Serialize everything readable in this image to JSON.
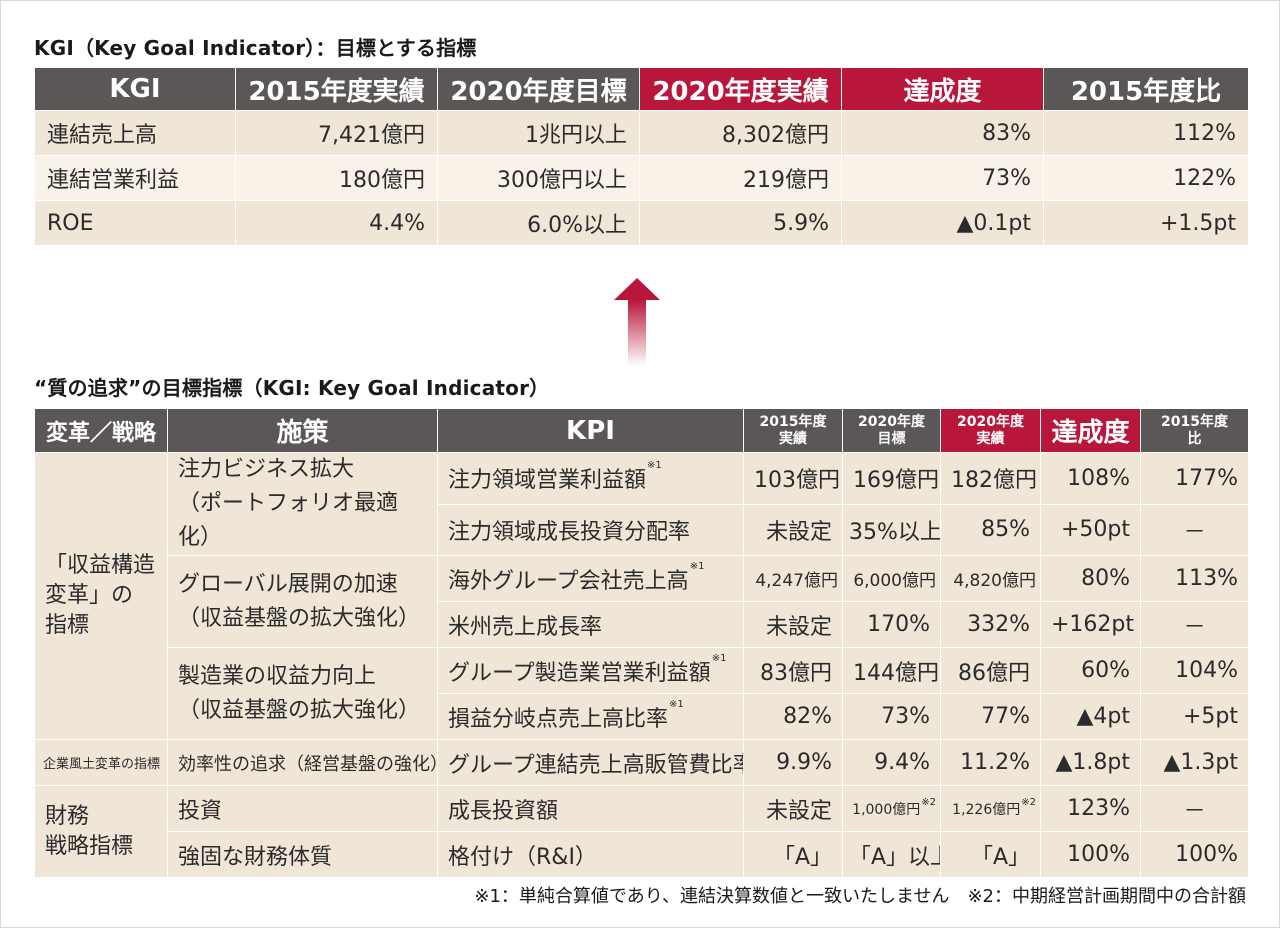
{
  "kgi": {
    "title": "KGI（Key Goal Indicator）：目標とする指標",
    "headers": [
      "KGI",
      "2015年度実績",
      "2020年度目標",
      "2020年度実績",
      "達成度",
      "2015年度比"
    ],
    "rows": [
      [
        "連結売上高",
        "7,421億円",
        "1兆円以上",
        "8,302億円",
        "83%",
        "112%"
      ],
      [
        "連結営業利益",
        "180億円",
        "300億円以上",
        "219億円",
        "73%",
        "122%"
      ],
      [
        "ROE",
        "4.4%",
        "6.0%以上",
        "5.9%",
        "▲0.1pt",
        "+1.5pt"
      ]
    ]
  },
  "quality": {
    "title": "“質の追求”の目標指標（KGI: Key Goal Indicator）",
    "headers": {
      "category": "変革／戦略",
      "measure": "施策",
      "kpi": "KPI",
      "actual2015": "2015年度\n実績",
      "target2020": "2020年度\n目標",
      "actual2020": "2020年度\n実績",
      "achievement": "達成度",
      "vs2015": "2015年度\n比"
    },
    "groups": {
      "profit": "「収益構造\n変革」の\n指標",
      "culture": "企業風土変革の指標",
      "finance": "財務\n戦略指標"
    },
    "measures": {
      "m1": "注力ビジネス拡大\n（ポートフォリオ最適化）",
      "m2": "グローバル展開の加速\n（収益基盤の拡大強化）",
      "m3": "製造業の収益力向上\n（収益基盤の拡大強化）",
      "m4": "効率性の追求（経営基盤の強化）",
      "m5": "投資",
      "m6": "強固な財務体質"
    },
    "rows": [
      {
        "kpi": "注力領域営業利益額",
        "note": "※1",
        "a": "103億円",
        "b": "169億円",
        "c": "182億円",
        "d": "108%",
        "e": "177%"
      },
      {
        "kpi": "注力領域成長投資分配率",
        "note": "",
        "a": "未設定",
        "b": "35%以上",
        "c": "85%",
        "d": "+50pt",
        "e": "－"
      },
      {
        "kpi": "海外グループ会社売上高",
        "note": "※1",
        "a": "4,247億円",
        "b": "6,000億円",
        "c": "4,820億円",
        "d": "80%",
        "e": "113%"
      },
      {
        "kpi": "米州売上成長率",
        "note": "",
        "a": "未設定",
        "b": "170%",
        "c": "332%",
        "d": "+162pt",
        "e": "－"
      },
      {
        "kpi": "グループ製造業営業利益額",
        "note": "※1",
        "a": "83億円",
        "b": "144億円",
        "c": "86億円",
        "d": "60%",
        "e": "104%"
      },
      {
        "kpi": "損益分岐点売上高比率",
        "note": "※1",
        "a": "82%",
        "b": "73%",
        "c": "77%",
        "d": "▲4pt",
        "e": "+5pt"
      },
      {
        "kpi": "グループ連結売上高販管費比率",
        "note": "",
        "a": "9.9%",
        "b": "9.4%",
        "c": "11.2%",
        "d": "▲1.8pt",
        "e": "▲1.3pt"
      },
      {
        "kpi": "成長投資額",
        "note": "",
        "a": "未設定",
        "b": "1,000億円",
        "bnote": "※2",
        "c": "1,226億円",
        "cnote": "※2",
        "d": "123%",
        "e": "－"
      },
      {
        "kpi": "格付け（R&I）",
        "note": "",
        "a": "「A」",
        "b": "「A」以上",
        "c": "「A」",
        "d": "100%",
        "e": "100%"
      }
    ]
  },
  "footnote": "※1：単純合算値であり、連結決算数値と一致いたしません　※2：中期経営計画期間中の合計額",
  "colors": {
    "header": "#5b5757",
    "highlight": "#b8163a",
    "cell": "#efe6d7",
    "arrow": "#b8163a"
  }
}
